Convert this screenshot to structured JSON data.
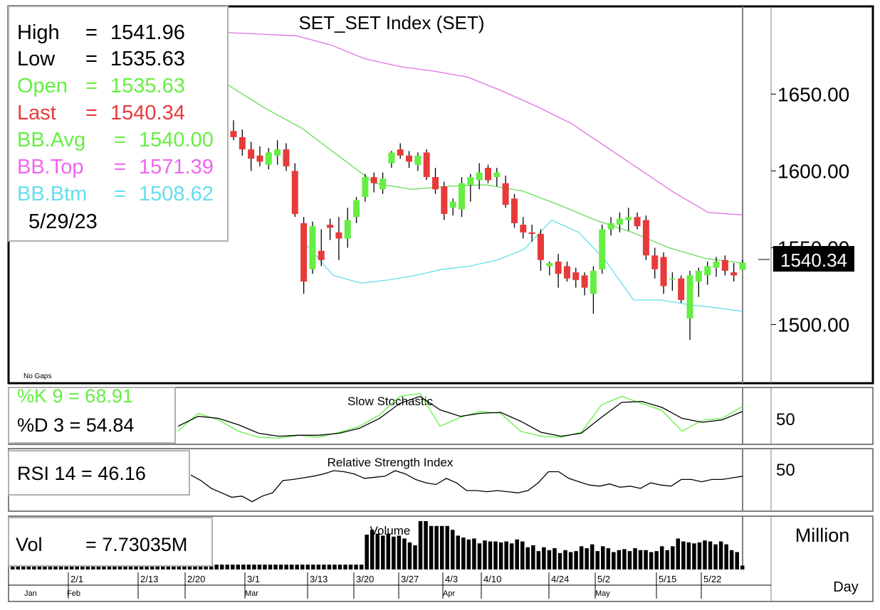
{
  "chart_data": {
    "type": "candlestick",
    "title": "SET_SET Index  (SET)",
    "info": {
      "high_label": "High",
      "high_value": "1541.96",
      "low_label": "Low",
      "low_value": "1535.63",
      "open_label": "Open",
      "open_value": "1535.63",
      "last_label": "Last",
      "last_value": "1540.34",
      "bbavg_label": "BB.Avg",
      "bbavg_value": "1540.00",
      "bbtop_label": "BB.Top",
      "bbtop_value": "1571.39",
      "bbbtm_label": "BB.Btm",
      "bbbtm_value": "1508.62",
      "date": "5/29/23",
      "eq": "="
    },
    "no_gaps": "No Gaps",
    "price_ticks": [
      "1650.00",
      "1600.00",
      "1550.00",
      "1500.00"
    ],
    "price_tick_values": [
      1650,
      1600,
      1550,
      1500
    ],
    "price_range": [
      1466,
      1702
    ],
    "last_badge": "1540.34",
    "candles": [
      [
        1626,
        1633,
        1620,
        1622
      ],
      [
        1622,
        1627,
        1610,
        1614
      ],
      [
        1614,
        1619,
        1600,
        1608
      ],
      [
        1610,
        1616,
        1603,
        1606
      ],
      [
        1604,
        1615,
        1601,
        1612
      ],
      [
        1610,
        1620,
        1604,
        1614
      ],
      [
        1614,
        1618,
        1600,
        1603
      ],
      [
        1600,
        1605,
        1570,
        1572
      ],
      [
        1566,
        1570,
        1520,
        1528
      ],
      [
        1536,
        1567,
        1533,
        1564
      ],
      [
        1548,
        1562,
        1538,
        1542
      ],
      [
        1565,
        1569,
        1555,
        1563
      ],
      [
        1560,
        1570,
        1542,
        1556
      ],
      [
        1556,
        1576,
        1550,
        1568
      ],
      [
        1570,
        1583,
        1566,
        1581
      ],
      [
        1583,
        1598,
        1580,
        1596
      ],
      [
        1596,
        1599,
        1586,
        1592
      ],
      [
        1588,
        1599,
        1585,
        1595
      ],
      [
        1605,
        1613,
        1602,
        1612
      ],
      [
        1614,
        1618,
        1608,
        1610
      ],
      [
        1610,
        1613,
        1602,
        1606
      ],
      [
        1604,
        1612,
        1600,
        1610
      ],
      [
        1612,
        1614,
        1594,
        1596
      ],
      [
        1596,
        1602,
        1585,
        1588
      ],
      [
        1590,
        1593,
        1568,
        1572
      ],
      [
        1576,
        1582,
        1571,
        1580
      ],
      [
        1575,
        1596,
        1570,
        1592
      ],
      [
        1591,
        1598,
        1580,
        1596
      ],
      [
        1594,
        1605,
        1588,
        1599
      ],
      [
        1602,
        1604,
        1592,
        1594
      ],
      [
        1596,
        1602,
        1590,
        1599
      ],
      [
        1592,
        1597,
        1576,
        1578
      ],
      [
        1582,
        1585,
        1563,
        1566
      ],
      [
        1565,
        1570,
        1556,
        1560
      ],
      [
        1560,
        1565,
        1554,
        1559
      ],
      [
        1559,
        1562,
        1535,
        1542
      ],
      [
        1538,
        1541,
        1532,
        1540
      ],
      [
        1541,
        1546,
        1524,
        1533
      ],
      [
        1538,
        1541,
        1528,
        1530
      ],
      [
        1534,
        1537,
        1524,
        1529
      ],
      [
        1532,
        1534,
        1519,
        1524
      ],
      [
        1520,
        1538,
        1507,
        1535
      ],
      [
        1536,
        1565,
        1533,
        1562
      ],
      [
        1562,
        1570,
        1558,
        1566
      ],
      [
        1565,
        1573,
        1560,
        1569
      ],
      [
        1568,
        1576,
        1561,
        1570
      ],
      [
        1570,
        1573,
        1562,
        1564
      ],
      [
        1568,
        1571,
        1542,
        1545
      ],
      [
        1545,
        1550,
        1530,
        1536
      ],
      [
        1544,
        1547,
        1520,
        1525
      ],
      [
        1530,
        1534,
        1522,
        1530
      ],
      [
        1530,
        1532,
        1514,
        1516
      ],
      [
        1504,
        1535,
        1490,
        1532
      ],
      [
        1528,
        1537,
        1518,
        1535
      ],
      [
        1532,
        1541,
        1526,
        1538
      ],
      [
        1537,
        1544,
        1531,
        1541
      ],
      [
        1542,
        1545,
        1532,
        1535
      ],
      [
        1534,
        1540,
        1528,
        1532
      ],
      [
        1535.63,
        1541.96,
        1535.63,
        1540.34
      ]
    ],
    "bb_top": [
      1690,
      1689,
      1688,
      1682,
      1673,
      1668,
      1665,
      1661,
      1652,
      1642,
      1631,
      1616,
      1601,
      1586,
      1573,
      1571.39
    ],
    "bb_avg": [
      1656,
      1641,
      1628,
      1610,
      1592,
      1588,
      1590,
      1591,
      1587,
      1578,
      1568,
      1560,
      1550,
      1543,
      1540.0
    ],
    "bb_btm": [
      1552,
      1532,
      1527,
      1529,
      1532,
      1536,
      1538,
      1542,
      1549,
      1568,
      1560,
      1541,
      1516,
      1516,
      1513,
      1511,
      1508.62
    ],
    "stoch_title": "Slow  Stochastic",
    "stoch_k_label": "%K  9  =  68.91",
    "stoch_d_label": "%D  3  =  54.84",
    "stoch_tick": "50",
    "stoch_k": [
      22,
      58,
      45,
      22,
      10,
      8,
      14,
      10,
      20,
      32,
      55,
      92,
      98,
      32,
      50,
      62,
      58,
      22,
      12,
      10,
      20,
      75,
      92,
      78,
      64,
      22,
      44,
      48,
      72
    ],
    "stoch_d": [
      32,
      52,
      48,
      35,
      18,
      12,
      14,
      14,
      18,
      28,
      48,
      78,
      92,
      65,
      52,
      58,
      60,
      42,
      20,
      12,
      18,
      50,
      80,
      82,
      70,
      48,
      40,
      45,
      62
    ],
    "rsi_title": "Relative  Strength  Index",
    "rsi_label": "RSI  14  =  46.16",
    "rsi_tick": "50",
    "rsi": [
      60,
      50,
      36,
      28,
      20,
      22,
      12,
      22,
      28,
      50,
      52,
      55,
      58,
      62,
      68,
      66,
      62,
      54,
      56,
      58,
      68,
      62,
      52,
      46,
      43,
      54,
      46,
      32,
      32,
      30,
      32,
      30,
      28,
      32,
      46,
      66,
      66,
      54,
      48,
      42,
      40,
      44,
      38,
      40,
      36,
      46,
      42,
      40,
      52,
      52,
      48,
      52,
      52,
      55,
      58
    ],
    "vol_title": "Volume",
    "vol_label_name": "Vol",
    "vol_label_value": "=  7.73035M",
    "vol_unit": "Million",
    "vol_tick_label": "Day",
    "volume": [
      10,
      10,
      10,
      10,
      10,
      10,
      10,
      10,
      10,
      10,
      10,
      10,
      10,
      10,
      10,
      10,
      10,
      10,
      10,
      10,
      10,
      10,
      10,
      10,
      10,
      10,
      10,
      10,
      10,
      10,
      10,
      10,
      10,
      10,
      10,
      10,
      10,
      10,
      10,
      10,
      10,
      10,
      10,
      10,
      10,
      10,
      10,
      10,
      10,
      10,
      10,
      10,
      10,
      10,
      10,
      10,
      10,
      10,
      10,
      10,
      10,
      10,
      10,
      10,
      10,
      10,
      72,
      82,
      74,
      70,
      74,
      68,
      70,
      64,
      56,
      50,
      100,
      100,
      90,
      90,
      90,
      90,
      82,
      70,
      66,
      62,
      64,
      54,
      60,
      58,
      58,
      56,
      58,
      54,
      62,
      58,
      46,
      50,
      38,
      46,
      40,
      44,
      34,
      40,
      36,
      38,
      48,
      44,
      52,
      38,
      48,
      44,
      36,
      40,
      42,
      38,
      44,
      40,
      40,
      36,
      38,
      48,
      40,
      48,
      64,
      58,
      56,
      54,
      56,
      60,
      58,
      52,
      58,
      52,
      40,
      36,
      8
    ],
    "date_labels": [
      "2/1",
      "2/13",
      "2/20",
      "3/1",
      "3/13",
      "3/20",
      "3/27",
      "4/3",
      "4/10",
      "4/24",
      "5/2",
      "5/15",
      "5/22"
    ],
    "month_labels": [
      "Jan",
      "Feb",
      "Mar",
      "Apr",
      "May"
    ]
  }
}
